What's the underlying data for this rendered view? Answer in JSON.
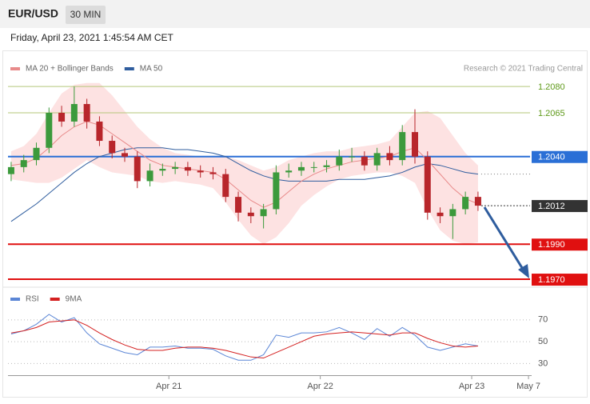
{
  "header": {
    "symbol": "EUR/USD",
    "timeframe": "30 MIN",
    "datetime": "Friday, April 23, 2021 1:45:54 AM CET"
  },
  "chart_data": [
    {
      "type": "candlestick",
      "annotation": "Research © 2021 Trading Central",
      "x": [
        0,
        4,
        8,
        12,
        16,
        20,
        24,
        28,
        32,
        36,
        40,
        44,
        48,
        52,
        56,
        60,
        64,
        68,
        72,
        76,
        80,
        84,
        88,
        92,
        96,
        100,
        104,
        108,
        112,
        116,
        120,
        124,
        128,
        132,
        136,
        140,
        144,
        148
      ],
      "open": [
        1.203,
        1.2034,
        1.2038,
        1.2045,
        1.2065,
        1.206,
        1.207,
        1.206,
        1.2049,
        1.2042,
        1.204,
        1.2026,
        1.2032,
        1.2033,
        1.2034,
        1.2032,
        1.2031,
        1.203,
        1.2017,
        1.2008,
        1.2006,
        1.201,
        1.2031,
        1.2032,
        1.2034,
        1.2034,
        1.2035,
        1.204,
        1.204,
        1.2035,
        1.2042,
        1.2038,
        1.2054,
        1.204,
        1.2008,
        1.2006,
        1.201,
        1.2017
      ],
      "high": [
        1.2037,
        1.2041,
        1.2048,
        1.2068,
        1.2069,
        1.208,
        1.2073,
        1.2063,
        1.2052,
        1.2045,
        1.2043,
        1.2036,
        1.2036,
        1.2037,
        1.2037,
        1.2035,
        1.2034,
        1.2033,
        1.202,
        1.2011,
        1.2013,
        1.2035,
        1.2036,
        1.2037,
        1.2037,
        1.2038,
        1.2044,
        1.2045,
        1.2043,
        1.2045,
        1.2046,
        1.2058,
        1.2067,
        1.2043,
        1.2011,
        1.2013,
        1.202,
        1.202
      ],
      "low": [
        1.2026,
        1.2031,
        1.2035,
        1.2042,
        1.2057,
        1.2057,
        1.2056,
        1.2046,
        1.2039,
        1.2037,
        1.2022,
        1.2023,
        1.2029,
        1.203,
        1.2029,
        1.2028,
        1.2027,
        1.2014,
        1.2003,
        1.2002,
        1.1999,
        1.2007,
        1.2028,
        1.2029,
        1.2031,
        1.2031,
        1.2032,
        1.2037,
        1.2032,
        1.2032,
        1.2035,
        1.2035,
        1.2036,
        1.2004,
        1.2002,
        1.1993,
        1.2007,
        1.2009
      ],
      "close": [
        1.2034,
        1.2038,
        1.2045,
        1.2065,
        1.206,
        1.207,
        1.206,
        1.2049,
        1.2042,
        1.204,
        1.2026,
        1.2032,
        1.2033,
        1.2034,
        1.2032,
        1.2031,
        1.203,
        1.2017,
        1.2008,
        1.2006,
        1.201,
        1.2031,
        1.2032,
        1.2034,
        1.2034,
        1.2035,
        1.204,
        1.204,
        1.2035,
        1.2042,
        1.2038,
        1.2054,
        1.204,
        1.2008,
        1.2006,
        1.201,
        1.2017,
        1.2012
      ],
      "up_color": "#3c9a3c",
      "down_color": "#b8262b",
      "series": [
        {
          "name": "MA 20 + Bollinger Bands",
          "color": "#e88a8a",
          "band_color": "#fde2e2",
          "values": [
            1.2035,
            1.2036,
            1.2039,
            1.2045,
            1.2052,
            1.2057,
            1.206,
            1.2058,
            1.2053,
            1.2048,
            1.2043,
            1.2038,
            1.2035,
            1.2034,
            1.2033,
            1.2032,
            1.2031,
            1.2027,
            1.2021,
            1.2015,
            1.2011,
            1.2014,
            1.202,
            1.2026,
            1.203,
            1.2033,
            1.2035,
            1.2037,
            1.2038,
            1.2039,
            1.204,
            1.2043,
            1.2045,
            1.2038,
            1.203,
            1.2022,
            1.2016,
            1.2013
          ],
          "upper": [
            1.2043,
            1.2046,
            1.2053,
            1.2065,
            1.2076,
            1.2081,
            1.2082,
            1.2082,
            1.2075,
            1.2066,
            1.2057,
            1.205,
            1.2045,
            1.2042,
            1.2041,
            1.204,
            1.204,
            1.204,
            1.2038,
            1.2035,
            1.2032,
            1.2034,
            1.2038,
            1.204,
            1.2042,
            1.2043,
            1.2043,
            1.2045,
            1.2046,
            1.2047,
            1.2049,
            1.2057,
            1.2065,
            1.2066,
            1.2062,
            1.2052,
            1.2042,
            1.2035
          ],
          "lower": [
            1.2027,
            1.2026,
            1.2025,
            1.2025,
            1.2028,
            1.2033,
            1.2038,
            1.2034,
            1.2031,
            1.203,
            1.2029,
            1.2026,
            1.2025,
            1.2026,
            1.2025,
            1.2024,
            1.2022,
            1.2014,
            1.2004,
            1.1995,
            1.199,
            1.1994,
            1.2002,
            1.2012,
            1.2018,
            1.2023,
            1.2027,
            1.2029,
            1.203,
            1.2031,
            1.2031,
            1.2029,
            1.2025,
            1.201,
            1.1998,
            1.1992,
            1.199,
            1.1991
          ]
        },
        {
          "name": "MA 50",
          "color": "#2f5d9e",
          "values": [
            1.2003,
            1.2008,
            1.2013,
            1.2019,
            1.2025,
            1.2031,
            1.2036,
            1.204,
            1.2042,
            1.2044,
            1.2045,
            1.2045,
            1.2045,
            1.2044,
            1.2044,
            1.2043,
            1.2042,
            1.204,
            1.2036,
            1.2032,
            1.2029,
            1.2027,
            1.2026,
            1.2026,
            1.2026,
            1.2026,
            1.2027,
            1.2027,
            1.2027,
            1.2028,
            1.2029,
            1.2031,
            1.2034,
            1.2036,
            1.2035,
            1.2033,
            1.2031,
            1.203
          ]
        }
      ],
      "levels": [
        {
          "value": 1.208,
          "label": "1.2080",
          "color": "#b5c77a",
          "text_color": "#5f9a1a",
          "boxed": false,
          "dashed": false
        },
        {
          "value": 1.2065,
          "label": "1.2065",
          "color": "#b5c77a",
          "text_color": "#5f9a1a",
          "boxed": false,
          "dashed": false
        },
        {
          "value": 1.204,
          "label": "1.2040",
          "color": "#2a6fd6",
          "text_color": "#ffffff",
          "boxed": true,
          "dashed": false
        },
        {
          "value": 1.2012,
          "label": "1.2012",
          "color": "#333333",
          "text_color": "#ffffff",
          "boxed": true,
          "dashed": true
        },
        {
          "value": 1.199,
          "label": "1.1990",
          "color": "#e01010",
          "text_color": "#ffffff",
          "boxed": true,
          "dashed": false
        },
        {
          "value": 1.197,
          "label": "1.1970",
          "color": "#e01010",
          "text_color": "#ffffff",
          "boxed": true,
          "dashed": false
        }
      ],
      "xlim": [
        -1,
        165
      ],
      "ylim": [
        1.1965,
        1.2086
      ]
    },
    {
      "type": "line",
      "x": [
        0,
        4,
        8,
        12,
        16,
        20,
        24,
        28,
        32,
        36,
        40,
        44,
        48,
        52,
        56,
        60,
        64,
        68,
        72,
        76,
        80,
        84,
        88,
        92,
        96,
        100,
        104,
        108,
        112,
        116,
        120,
        124,
        128,
        132,
        136,
        140,
        144,
        148
      ],
      "series": [
        {
          "name": "RSI",
          "color": "#5b86d6",
          "values": [
            57,
            60,
            66,
            75,
            68,
            72,
            58,
            48,
            44,
            40,
            38,
            45,
            45,
            46,
            44,
            44,
            43,
            37,
            33,
            33,
            38,
            56,
            54,
            58,
            58,
            59,
            63,
            58,
            52,
            62,
            55,
            63,
            56,
            45,
            42,
            45,
            48,
            46
          ]
        },
        {
          "name": "9MA",
          "color": "#d42020",
          "values": [
            58,
            60,
            63,
            68,
            69,
            70,
            65,
            58,
            52,
            47,
            43,
            42,
            42,
            44,
            45,
            45,
            44,
            42,
            39,
            36,
            35,
            40,
            45,
            50,
            55,
            57,
            58,
            59,
            58,
            57,
            56,
            58,
            58,
            53,
            49,
            46,
            45,
            46
          ]
        }
      ],
      "xlim": [
        -1,
        165
      ],
      "ylim": [
        20,
        97
      ],
      "yticks": [
        30,
        50,
        70
      ],
      "grid": true,
      "xticks": [
        {
          "value": 50,
          "label": "Apr 21"
        },
        {
          "value": 98,
          "label": "Apr 22"
        },
        {
          "value": 146,
          "label": "Apr 23"
        },
        {
          "value": 164,
          "label": "May 7"
        }
      ]
    }
  ]
}
